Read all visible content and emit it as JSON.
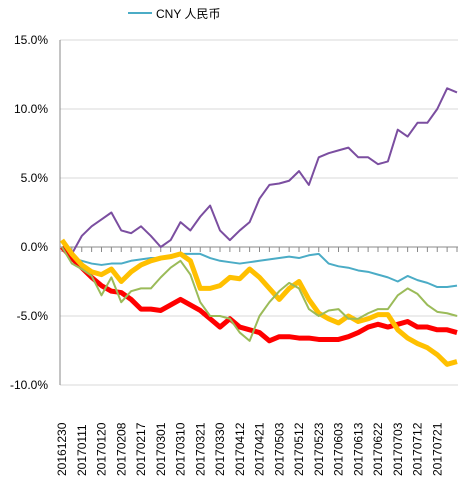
{
  "chart_data": {
    "type": "line",
    "categories": [
      "20161230",
      null,
      "20170111",
      null,
      "20170120",
      null,
      "20170208",
      null,
      "20170217",
      null,
      "20170301",
      null,
      "20170310",
      null,
      "20170321",
      null,
      "20170330",
      null,
      "20170412",
      null,
      "20170421",
      null,
      "20170503",
      null,
      "20170512",
      null,
      "20170523",
      null,
      "20170603",
      null,
      "20170613",
      null,
      "20170622",
      null,
      "20170703",
      null,
      "20170712",
      null,
      "20170721",
      null,
      null
    ],
    "series": [
      {
        "color": "#7b4ea0",
        "line_width": 2,
        "values": [
          0,
          -0.5,
          0.8,
          1.5,
          2,
          2.5,
          1.2,
          1,
          1.5,
          0.8,
          0,
          0.5,
          1.8,
          1.2,
          2.2,
          3,
          1.2,
          0.5,
          1.2,
          1.8,
          3.5,
          4.5,
          4.6,
          4.8,
          5.5,
          4.5,
          6.5,
          6.8,
          7,
          7.2,
          6.5,
          6.5,
          6,
          6.2,
          8.5,
          8,
          9,
          9,
          10,
          11.5,
          11.2
        ]
      },
      {
        "name": "CNY 人民币",
        "color": "#4bacc6",
        "line_width": 2,
        "values": [
          0,
          -0.8,
          -1,
          -1.2,
          -1.3,
          -1.2,
          -1.2,
          -1,
          -0.9,
          -0.8,
          -0.8,
          -0.6,
          -0.5,
          -0.5,
          -0.5,
          -0.8,
          -1,
          -1.1,
          -1.2,
          -1.1,
          -1,
          -0.9,
          -0.8,
          -0.7,
          -0.8,
          -0.6,
          -0.5,
          -1.2,
          -1.4,
          -1.5,
          -1.7,
          -1.8,
          -2,
          -2.2,
          -2.5,
          -2.1,
          -2.4,
          -2.6,
          -2.9,
          -2.9,
          -2.8
        ]
      },
      {
        "color": "#ff0000",
        "line_width": 5,
        "values": [
          0,
          -0.8,
          -1.5,
          -2.2,
          -2.8,
          -3.2,
          -3.3,
          -3.8,
          -4.5,
          -4.5,
          -4.6,
          -4.2,
          -3.8,
          -4.2,
          -4.6,
          -5.2,
          -5.8,
          -5.2,
          -5.8,
          -6,
          -6.2,
          -6.8,
          -6.5,
          -6.5,
          -6.6,
          -6.6,
          -6.7,
          -6.7,
          -6.7,
          -6.5,
          -6.2,
          -5.8,
          -5.6,
          -5.8,
          -5.6,
          -5.4,
          -5.8,
          -5.8,
          -6,
          -6,
          -6.2
        ]
      },
      {
        "color": "#ffc000",
        "line_width": 5,
        "values": [
          0.5,
          -0.5,
          -1.3,
          -1.8,
          -2,
          -1.6,
          -2.5,
          -1.8,
          -1.3,
          -1,
          -0.8,
          -0.7,
          -0.5,
          -1,
          -3,
          -3,
          -2.8,
          -2.2,
          -2.3,
          -1.6,
          -2.2,
          -3,
          -3.8,
          -3,
          -2.5,
          -3.8,
          -4.8,
          -5.2,
          -5.5,
          -5,
          -5.4,
          -5.2,
          -4.9,
          -4.9,
          -6,
          -6.6,
          -7,
          -7.3,
          -7.8,
          -8.5,
          -8.3
        ]
      },
      {
        "color": "#9bbb59",
        "line_width": 2,
        "values": [
          0,
          -1.2,
          -1.6,
          -2.1,
          -3.5,
          -2.2,
          -4,
          -3.2,
          -3,
          -3,
          -2.2,
          -1.5,
          -1,
          -2,
          -4,
          -5,
          -5,
          -5.2,
          -6.2,
          -6.8,
          -5,
          -4,
          -3.2,
          -2.6,
          -3,
          -4.5,
          -5,
          -4.6,
          -4.5,
          -5.2,
          -5.2,
          -4.8,
          -4.5,
          -4.5,
          -3.5,
          -3,
          -3.4,
          -4.2,
          -4.7,
          -4.8,
          -5
        ]
      }
    ],
    "ylim": [
      -10,
      15
    ],
    "yticks": [
      {
        "value": -10,
        "label": "-10.0%"
      },
      {
        "value": -5,
        "label": "-5.0%"
      },
      {
        "value": 0,
        "label": "0.0%"
      },
      {
        "value": 5,
        "label": "5.0%"
      },
      {
        "value": 10,
        "label": "10.0%"
      },
      {
        "value": 15,
        "label": "15.0%"
      }
    ],
    "grid": true,
    "legend": "top"
  }
}
